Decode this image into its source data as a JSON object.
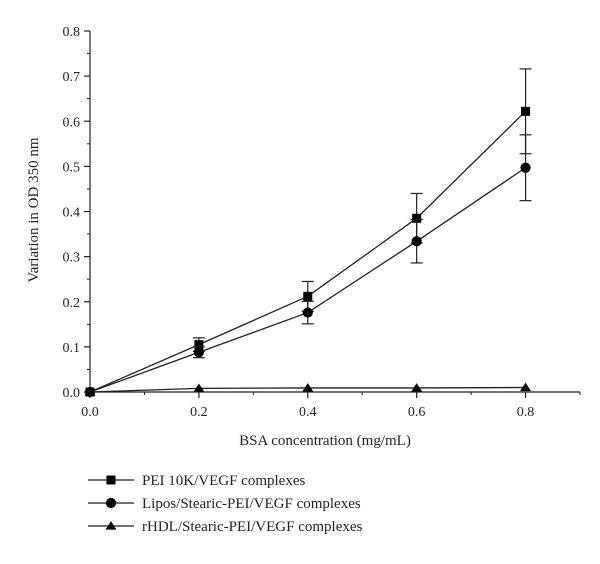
{
  "chart_data": {
    "type": "line",
    "xlabel": "BSA concentration (mg/mL)",
    "ylabel": "Variation in OD 350 nm",
    "xlim": [
      0,
      0.9
    ],
    "ylim": [
      0,
      0.8
    ],
    "x_ticks": [
      "0.0",
      "0.2",
      "0.4",
      "0.6",
      "0.8"
    ],
    "y_ticks": [
      "0.0",
      "0.1",
      "0.2",
      "0.3",
      "0.4",
      "0.5",
      "0.6",
      "0.7",
      "0.8"
    ],
    "x": [
      0.0,
      0.2,
      0.4,
      0.6,
      0.8
    ],
    "legend_position": "bottom",
    "grid": false,
    "series": [
      {
        "name": "PEI 10K/VEGF complexes",
        "marker": "square",
        "values": [
          0.0,
          0.105,
          0.212,
          0.385,
          0.622
        ],
        "errors": [
          0.0,
          0.015,
          0.033,
          0.055,
          0.094
        ]
      },
      {
        "name": "Lipos/Stearic-PEI/VEGF complexes",
        "marker": "circle",
        "values": [
          0.0,
          0.088,
          0.176,
          0.334,
          0.497
        ],
        "errors": [
          0.0,
          0.012,
          0.025,
          0.048,
          0.073
        ]
      },
      {
        "name": "rHDL/Stearic-PEI/VEGF complexes",
        "marker": "triangle",
        "values": [
          0.0,
          0.008,
          0.009,
          0.009,
          0.01
        ],
        "errors": [
          0.0,
          0.0,
          0.0,
          0.0,
          0.0
        ]
      }
    ],
    "colors": {
      "line": "#231f20",
      "marker": "#000000"
    }
  }
}
